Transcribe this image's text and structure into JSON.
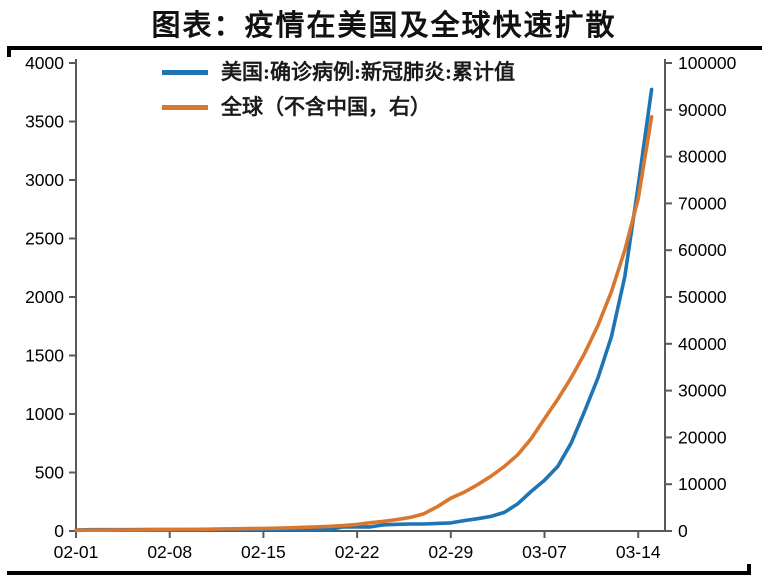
{
  "title": "图表：疫情在美国及全球快速扩散",
  "colors": {
    "us_line": "#1f74b4",
    "global_line": "#d9772e",
    "axis": "#595959",
    "tick_text": "#000000",
    "rule": "#000000",
    "background": "#ffffff"
  },
  "chart_data": {
    "type": "line",
    "title": "图表：疫情在美国及全球快速扩散",
    "grid": false,
    "legend_position": "top-center",
    "left_axis": {
      "min": 0,
      "max": 4000,
      "step": 500
    },
    "right_axis": {
      "min": 0,
      "max": 100000,
      "step": 10000
    },
    "x_domain_days": [
      0,
      44
    ],
    "x_ticks": [
      {
        "day": 0,
        "label": "02-01"
      },
      {
        "day": 7,
        "label": "02-08"
      },
      {
        "day": 14,
        "label": "02-15"
      },
      {
        "day": 21,
        "label": "02-22"
      },
      {
        "day": 28,
        "label": "02-29"
      },
      {
        "day": 35,
        "label": "03-07"
      },
      {
        "day": 42,
        "label": "03-14"
      }
    ],
    "dates": [
      "02-01",
      "02-02",
      "02-03",
      "02-04",
      "02-05",
      "02-06",
      "02-07",
      "02-08",
      "02-09",
      "02-10",
      "02-11",
      "02-12",
      "02-13",
      "02-14",
      "02-15",
      "02-16",
      "02-17",
      "02-18",
      "02-19",
      "02-20",
      "02-21",
      "02-22",
      "02-23",
      "02-24",
      "02-25",
      "02-26",
      "02-27",
      "02-28",
      "02-29",
      "03-01",
      "03-02",
      "03-03",
      "03-04",
      "03-05",
      "03-06",
      "03-07",
      "03-08",
      "03-09",
      "03-10",
      "03-11",
      "03-12",
      "03-13",
      "03-14",
      "03-15"
    ],
    "series": [
      {
        "key": "us-confirmed",
        "name": "美国:确诊病例:新冠肺炎:累计值",
        "axis": "left",
        "color": "#1f74b4",
        "values": [
          8,
          11,
          11,
          11,
          11,
          12,
          12,
          12,
          12,
          12,
          13,
          13,
          15,
          15,
          15,
          15,
          15,
          15,
          15,
          15,
          35,
          35,
          35,
          53,
          57,
          60,
          60,
          65,
          69,
          89,
          105,
          125,
          159,
          233,
          338,
          433,
          554,
          754,
          1025,
          1312,
          1663,
          2174,
          2951,
          3774
        ]
      },
      {
        "key": "global-ex-china",
        "name": "全球（不含中国，右）",
        "axis": "right",
        "color": "#d9772e",
        "values": [
          150,
          165,
          180,
          200,
          220,
          245,
          270,
          295,
          320,
          350,
          395,
          440,
          470,
          505,
          545,
          600,
          680,
          780,
          880,
          1010,
          1150,
          1400,
          1770,
          2070,
          2460,
          2930,
          3700,
          5200,
          7000,
          8300,
          9900,
          11700,
          13800,
          16300,
          19700,
          24000,
          28200,
          32800,
          38000,
          44000,
          51200,
          60000,
          71000,
          88500
        ]
      }
    ]
  }
}
